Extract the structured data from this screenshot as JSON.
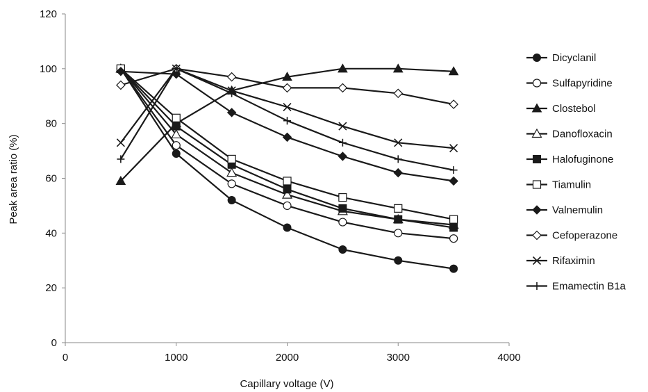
{
  "chart_data": {
    "type": "line",
    "title": "",
    "xlabel": "Capillary voltage (V)",
    "ylabel": "Peak area ratio (%)",
    "xlim": [
      0,
      4000
    ],
    "ylim": [
      0,
      120
    ],
    "xticks": [
      0,
      1000,
      2000,
      3000,
      4000
    ],
    "yticks": [
      0,
      20,
      40,
      60,
      80,
      100,
      120
    ],
    "grid": false,
    "legend_position": "right",
    "x": [
      500,
      1000,
      1500,
      2000,
      2500,
      3000,
      3500
    ],
    "series": [
      {
        "name": "Dicyclanil",
        "marker": "circle-filled",
        "values": [
          100,
          69,
          52,
          42,
          34,
          30,
          27
        ]
      },
      {
        "name": "Sulfapyridine",
        "marker": "circle-open",
        "values": [
          100,
          72,
          58,
          50,
          44,
          40,
          38
        ]
      },
      {
        "name": "Clostebol",
        "marker": "triangle-filled",
        "values": [
          59,
          80,
          92,
          97,
          100,
          100,
          99
        ]
      },
      {
        "name": "Danofloxacin",
        "marker": "triangle-open",
        "values": [
          100,
          76,
          62,
          54,
          48,
          45,
          43
        ]
      },
      {
        "name": "Halofuginone",
        "marker": "square-filled",
        "values": [
          100,
          79,
          65,
          56,
          49,
          45,
          42
        ]
      },
      {
        "name": "Tiamulin",
        "marker": "square-open",
        "values": [
          100,
          82,
          67,
          59,
          53,
          49,
          45
        ]
      },
      {
        "name": "Valnemulin",
        "marker": "diamond-filled",
        "values": [
          99,
          98,
          84,
          75,
          68,
          62,
          59
        ]
      },
      {
        "name": "Cefoperazone",
        "marker": "diamond-open",
        "values": [
          94,
          100,
          97,
          93,
          93,
          91,
          87
        ]
      },
      {
        "name": "Rifaximin",
        "marker": "x",
        "values": [
          73,
          100,
          92,
          86,
          79,
          73,
          71
        ]
      },
      {
        "name": "Emamectin B1a",
        "marker": "plus",
        "values": [
          67,
          100,
          91,
          81,
          73,
          67,
          63
        ]
      }
    ]
  }
}
